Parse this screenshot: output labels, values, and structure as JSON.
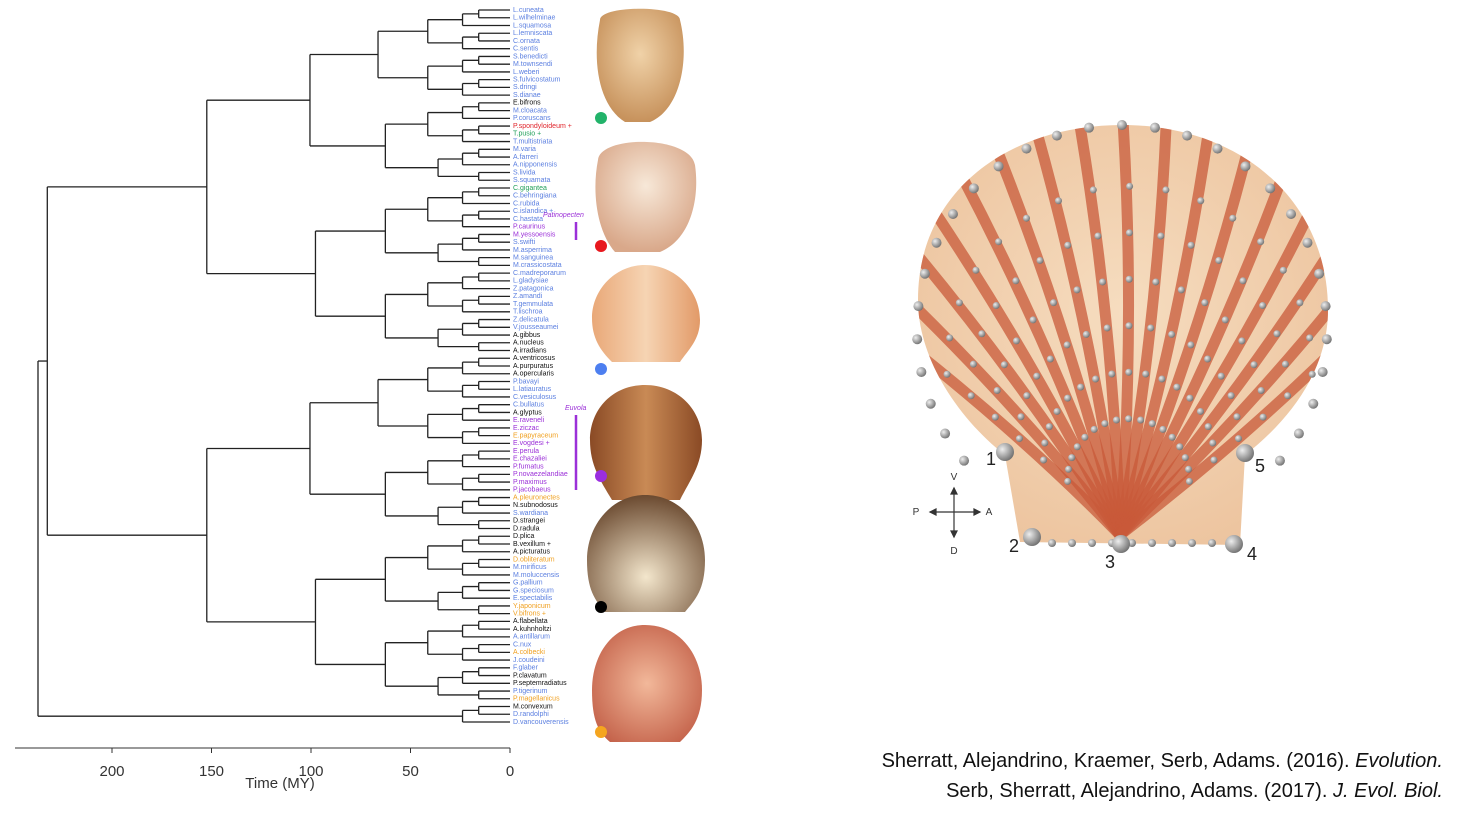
{
  "tree": {
    "tips": [
      {
        "name": "L.cuneata",
        "color": "#5b7fe0"
      },
      {
        "name": "L.wilhelminae",
        "color": "#5b7fe0"
      },
      {
        "name": "L.squamosa",
        "color": "#5b7fe0"
      },
      {
        "name": "L.lemniscata",
        "color": "#5b7fe0"
      },
      {
        "name": "C.ornata",
        "color": "#5b7fe0"
      },
      {
        "name": "C.sentis",
        "color": "#5b7fe0"
      },
      {
        "name": "S.benedicti",
        "color": "#5b7fe0"
      },
      {
        "name": "M.townsendi",
        "color": "#5b7fe0"
      },
      {
        "name": "L.weberi",
        "color": "#5b7fe0"
      },
      {
        "name": "S.fulvicostatum",
        "color": "#5b7fe0"
      },
      {
        "name": "S.dringi",
        "color": "#5b7fe0"
      },
      {
        "name": "S.dianae",
        "color": "#5b7fe0"
      },
      {
        "name": "E.bifrons",
        "color": "#111111"
      },
      {
        "name": "M.cloacata",
        "color": "#5b7fe0"
      },
      {
        "name": "P.coruscans",
        "color": "#5b7fe0"
      },
      {
        "name": "P.spondyloideum +",
        "color": "#e0242b"
      },
      {
        "name": "T.pusio +",
        "color": "#22a05a"
      },
      {
        "name": "T.multistriata",
        "color": "#5b7fe0"
      },
      {
        "name": "M.varia",
        "color": "#5b7fe0"
      },
      {
        "name": "A.farreri",
        "color": "#5b7fe0"
      },
      {
        "name": "A.nipponensis",
        "color": "#5b7fe0"
      },
      {
        "name": "S.livida",
        "color": "#5b7fe0"
      },
      {
        "name": "S.squamata",
        "color": "#5b7fe0"
      },
      {
        "name": "C.gigantea",
        "color": "#22a05a"
      },
      {
        "name": "C.behringiana",
        "color": "#5b7fe0"
      },
      {
        "name": "C.rubida",
        "color": "#5b7fe0"
      },
      {
        "name": "C.islandica +",
        "color": "#5b7fe0"
      },
      {
        "name": "C.hastata",
        "color": "#5b7fe0"
      },
      {
        "name": "P.caurinus",
        "color": "#9b30d8"
      },
      {
        "name": "M.yessoensis",
        "color": "#9b30d8"
      },
      {
        "name": "S.swifti",
        "color": "#5b7fe0"
      },
      {
        "name": "M.asperrima",
        "color": "#5b7fe0"
      },
      {
        "name": "M.sanguinea",
        "color": "#5b7fe0"
      },
      {
        "name": "M.crassicostata",
        "color": "#5b7fe0"
      },
      {
        "name": "C.madreporarum",
        "color": "#5b7fe0"
      },
      {
        "name": "L.gladysiae",
        "color": "#5b7fe0"
      },
      {
        "name": "Z.patagonica",
        "color": "#5b7fe0"
      },
      {
        "name": "Z.amandi",
        "color": "#5b7fe0"
      },
      {
        "name": "T.gemmulata",
        "color": "#5b7fe0"
      },
      {
        "name": "T.lischroa",
        "color": "#5b7fe0"
      },
      {
        "name": "Z.delicatula",
        "color": "#5b7fe0"
      },
      {
        "name": "V.jousseaumei",
        "color": "#5b7fe0"
      },
      {
        "name": "A.gibbus",
        "color": "#111111"
      },
      {
        "name": "A.nucleus",
        "color": "#111111"
      },
      {
        "name": "A.irradians",
        "color": "#111111"
      },
      {
        "name": "A.ventricosus",
        "color": "#111111"
      },
      {
        "name": "A.purpuratus",
        "color": "#111111"
      },
      {
        "name": "A.opercularis",
        "color": "#111111"
      },
      {
        "name": "P.bavayi",
        "color": "#5b7fe0"
      },
      {
        "name": "L.latiauratus",
        "color": "#5b7fe0"
      },
      {
        "name": "C.vesiculosus",
        "color": "#5b7fe0"
      },
      {
        "name": "C.bullatus",
        "color": "#5b7fe0"
      },
      {
        "name": "A.glyptus",
        "color": "#111111"
      },
      {
        "name": "E.raveneli",
        "color": "#9b30d8"
      },
      {
        "name": "E.ziczac",
        "color": "#9b30d8"
      },
      {
        "name": "E.papyraceum",
        "color": "#f0a020"
      },
      {
        "name": "E.vogdesi +",
        "color": "#9b30d8"
      },
      {
        "name": "E.perula",
        "color": "#9b30d8"
      },
      {
        "name": "E.chazaliei",
        "color": "#9b30d8"
      },
      {
        "name": "P.fumatus",
        "color": "#9b30d8"
      },
      {
        "name": "P.novaezelandiae",
        "color": "#9b30d8"
      },
      {
        "name": "P.maximus",
        "color": "#9b30d8"
      },
      {
        "name": "P.jacobaeus",
        "color": "#9b30d8"
      },
      {
        "name": "A.pleuronectes",
        "color": "#f0a020"
      },
      {
        "name": "N.subnodosus",
        "color": "#111111"
      },
      {
        "name": "S.wardiana",
        "color": "#5b7fe0"
      },
      {
        "name": "D.strangei",
        "color": "#111111"
      },
      {
        "name": "D.radula",
        "color": "#111111"
      },
      {
        "name": "D.plica",
        "color": "#111111"
      },
      {
        "name": "B.vexillum +",
        "color": "#111111"
      },
      {
        "name": "A.picturatus",
        "color": "#111111"
      },
      {
        "name": "D.obliteratum",
        "color": "#f0a020"
      },
      {
        "name": "M.mirificus",
        "color": "#5b7fe0"
      },
      {
        "name": "M.moluccensis",
        "color": "#5b7fe0"
      },
      {
        "name": "G.pallium",
        "color": "#5b7fe0"
      },
      {
        "name": "G.speciosum",
        "color": "#5b7fe0"
      },
      {
        "name": "E.spectabilis",
        "color": "#5b7fe0"
      },
      {
        "name": "Y.japonicum",
        "color": "#f0a020"
      },
      {
        "name": "V.bifrons +",
        "color": "#f0a020"
      },
      {
        "name": "A.flabellata",
        "color": "#111111"
      },
      {
        "name": "A.kuhnholtzi",
        "color": "#111111"
      },
      {
        "name": "A.antillarum",
        "color": "#5b7fe0"
      },
      {
        "name": "C.nux",
        "color": "#5b7fe0"
      },
      {
        "name": "A.colbecki",
        "color": "#f0a020"
      },
      {
        "name": "J.coudeini",
        "color": "#5b7fe0"
      },
      {
        "name": "F.glaber",
        "color": "#5b7fe0"
      },
      {
        "name": "P.clavatum",
        "color": "#111111"
      },
      {
        "name": "P.septemradiatus",
        "color": "#111111"
      },
      {
        "name": "P.tigerinum",
        "color": "#5b7fe0"
      },
      {
        "name": "P.magellanicus",
        "color": "#f0a020"
      },
      {
        "name": "M.convexum",
        "color": "#111111"
      },
      {
        "name": "D.randolphi",
        "color": "#5b7fe0"
      },
      {
        "name": "D.vancouverensis",
        "color": "#5b7fe0"
      }
    ],
    "axis": {
      "ticks": [
        200,
        150,
        100,
        50,
        0
      ],
      "label": "Time (MY)"
    },
    "clades": [
      {
        "label": "Patinopecten"
      },
      {
        "label": "Euvola"
      }
    ]
  },
  "landmark_figure": {
    "landmarks": [
      "1",
      "2",
      "3",
      "4",
      "5"
    ],
    "directions": [
      "P",
      "A",
      "V",
      "D"
    ]
  },
  "citations": [
    {
      "authors": "Sherratt, Alejandrino, Kraemer, Serb, Adams. (2016).",
      "journal": "Evolution."
    },
    {
      "authors": "Serb, Sherratt, Alejandrino, Adams. (2017).",
      "journal": "J. Evol. Biol."
    }
  ]
}
